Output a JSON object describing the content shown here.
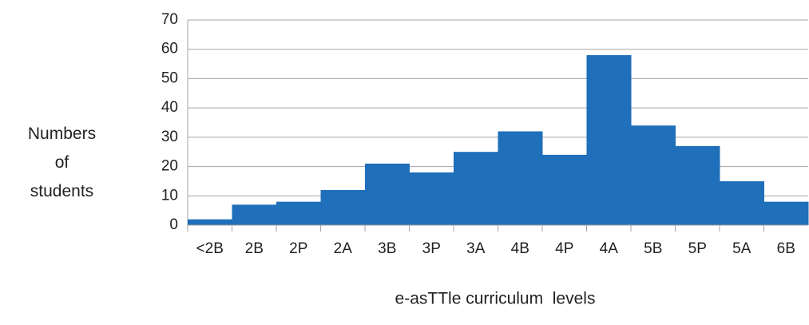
{
  "chart_data": {
    "type": "bar",
    "categories": [
      "<2B",
      "2B",
      "2P",
      "2A",
      "3B",
      "3P",
      "3A",
      "4B",
      "4P",
      "4A",
      "5B",
      "5P",
      "5A",
      "6B"
    ],
    "values": [
      2,
      7,
      8,
      12,
      21,
      18,
      25,
      32,
      24,
      58,
      34,
      27,
      15,
      8
    ],
    "color": "#1f6fba",
    "xlabel": "e-asTTle curriculum  levels",
    "ylabel": "Numbers of students",
    "ylim": [
      0,
      70
    ],
    "yticks": [
      0,
      10,
      20,
      30,
      40,
      50,
      60,
      70
    ],
    "grid": true
  }
}
